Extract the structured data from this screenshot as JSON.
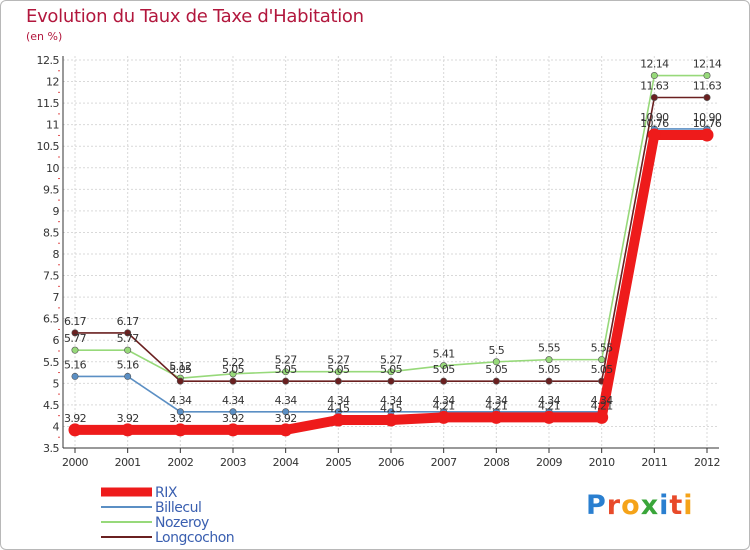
{
  "title": "Evolution du Taux de Taxe d'Habitation",
  "unit_label": "(en %)",
  "brand": {
    "letters": [
      "P",
      "r",
      "o",
      "x",
      "i",
      "t",
      "i"
    ],
    "colors": [
      "#2a7fd0",
      "#e84a2a",
      "#f5a319",
      "#3aa63a",
      "#2a7fd0",
      "#e84a2a",
      "#f5a319"
    ]
  },
  "chart_data": {
    "type": "line",
    "title": "Evolution du Taux de Taxe d'Habitation",
    "ylabel": "(en %)",
    "xlabel": "",
    "x": [
      "2000",
      "2001",
      "2002",
      "2003",
      "2004",
      "2005",
      "2006",
      "2007",
      "2008",
      "2009",
      "2010",
      "2011",
      "2012"
    ],
    "ylim": [
      3.5,
      12.5
    ],
    "y_ticks": [
      "3.5",
      "4",
      "4.5",
      "5",
      "5.5",
      "6",
      "6.5",
      "7",
      "7.5",
      "8",
      "8.5",
      "9",
      "9.5",
      "10",
      "10.5",
      "11",
      "11.5",
      "12",
      "12.5"
    ],
    "grid": true,
    "legend": "bottom-left",
    "series": [
      {
        "name": "Billecul",
        "color": "#5b8fc4",
        "values": [
          5.16,
          5.16,
          4.34,
          4.34,
          4.34,
          4.34,
          4.34,
          4.34,
          4.34,
          4.34,
          4.34,
          10.9,
          10.9
        ],
        "labels": [
          "5.16",
          "5.16",
          "4.34",
          "4.34",
          "4.34",
          "4.34",
          "4.34",
          "4.34",
          "4.34",
          "4.34",
          "4.34",
          "10.90",
          "10.90"
        ]
      },
      {
        "name": "Nozeroy",
        "color": "#97d97a",
        "values": [
          5.77,
          5.77,
          5.12,
          5.22,
          5.27,
          5.27,
          5.27,
          5.41,
          5.5,
          5.55,
          5.55,
          12.14,
          12.14
        ],
        "labels": [
          "5.77",
          "5.77",
          "5.12",
          "5.22",
          "5.27",
          "5.27",
          "5.27",
          "5.41",
          "5.5",
          "5.55",
          "5.55",
          "12.14",
          "12.14"
        ]
      },
      {
        "name": "Longcochon",
        "color": "#6a2020",
        "values": [
          6.17,
          6.17,
          5.05,
          5.05,
          5.05,
          5.05,
          5.05,
          5.05,
          5.05,
          5.05,
          5.05,
          11.63,
          11.63
        ],
        "labels": [
          "6.17",
          "6.17",
          "5.05",
          "5.05",
          "5.05",
          "5.05",
          "5.05",
          "5.05",
          "5.05",
          "5.05",
          "5.05",
          "11.63",
          "11.63"
        ]
      },
      {
        "name": "RIX",
        "color": "#ee1b1b",
        "values": [
          3.92,
          3.92,
          3.92,
          3.92,
          3.92,
          4.15,
          4.15,
          4.21,
          4.21,
          4.21,
          4.21,
          10.76,
          10.76
        ],
        "labels": [
          "3.92",
          "3.92",
          "3.92",
          "3.92",
          "3.92",
          "4.15",
          "4.15",
          "4.21",
          "4.21",
          "4.21",
          "4.21",
          "10.76",
          "10.76"
        ]
      }
    ],
    "legend_order": [
      "RIX",
      "Billecul",
      "Nozeroy",
      "Longcochon"
    ]
  }
}
